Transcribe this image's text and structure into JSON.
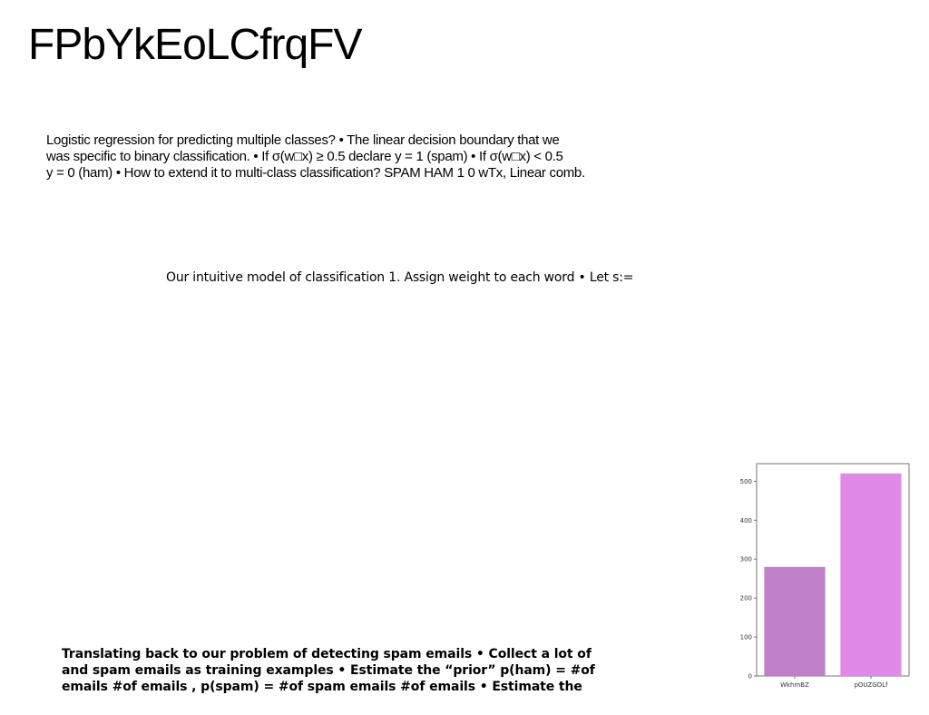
{
  "title": "FPbYkEoLCfrqFV",
  "paragraph1": {
    "lines": [
      "Logistic regression for predicting multiple classes? • The linear decision boundary that we",
      "was specific to binary classification. • If σ(w□x) ≥ 0.5 declare y = 1 (spam) • If σ(w□x) < 0.5",
      "y = 0 (ham) • How to extend it to multi-class classification? SPAM HAM 1 0 wTx, Linear comb."
    ]
  },
  "paragraph2": {
    "text": "Our intuitive model of classification 1. Assign weight to each word • Let s:="
  },
  "paragraph3": {
    "lines": [
      "Translating back to our problem of detecting spam emails • Collect a lot of",
      "and spam emails as training examples • Estimate the “prior” p(ham) = #of",
      "emails #of emails , p(spam) = #of spam emails #of emails • Estimate the"
    ]
  },
  "chart_data": {
    "type": "bar",
    "categories": [
      "WkhmBZ",
      "pOUZGOLf"
    ],
    "values": [
      280,
      520
    ],
    "colors": [
      "#bf80c8",
      "#e08ae6"
    ],
    "ylim": [
      0,
      545
    ],
    "yticks": [
      0,
      100,
      200,
      300,
      400,
      500
    ],
    "title": "",
    "xlabel": "",
    "ylabel": "",
    "grid": false
  }
}
